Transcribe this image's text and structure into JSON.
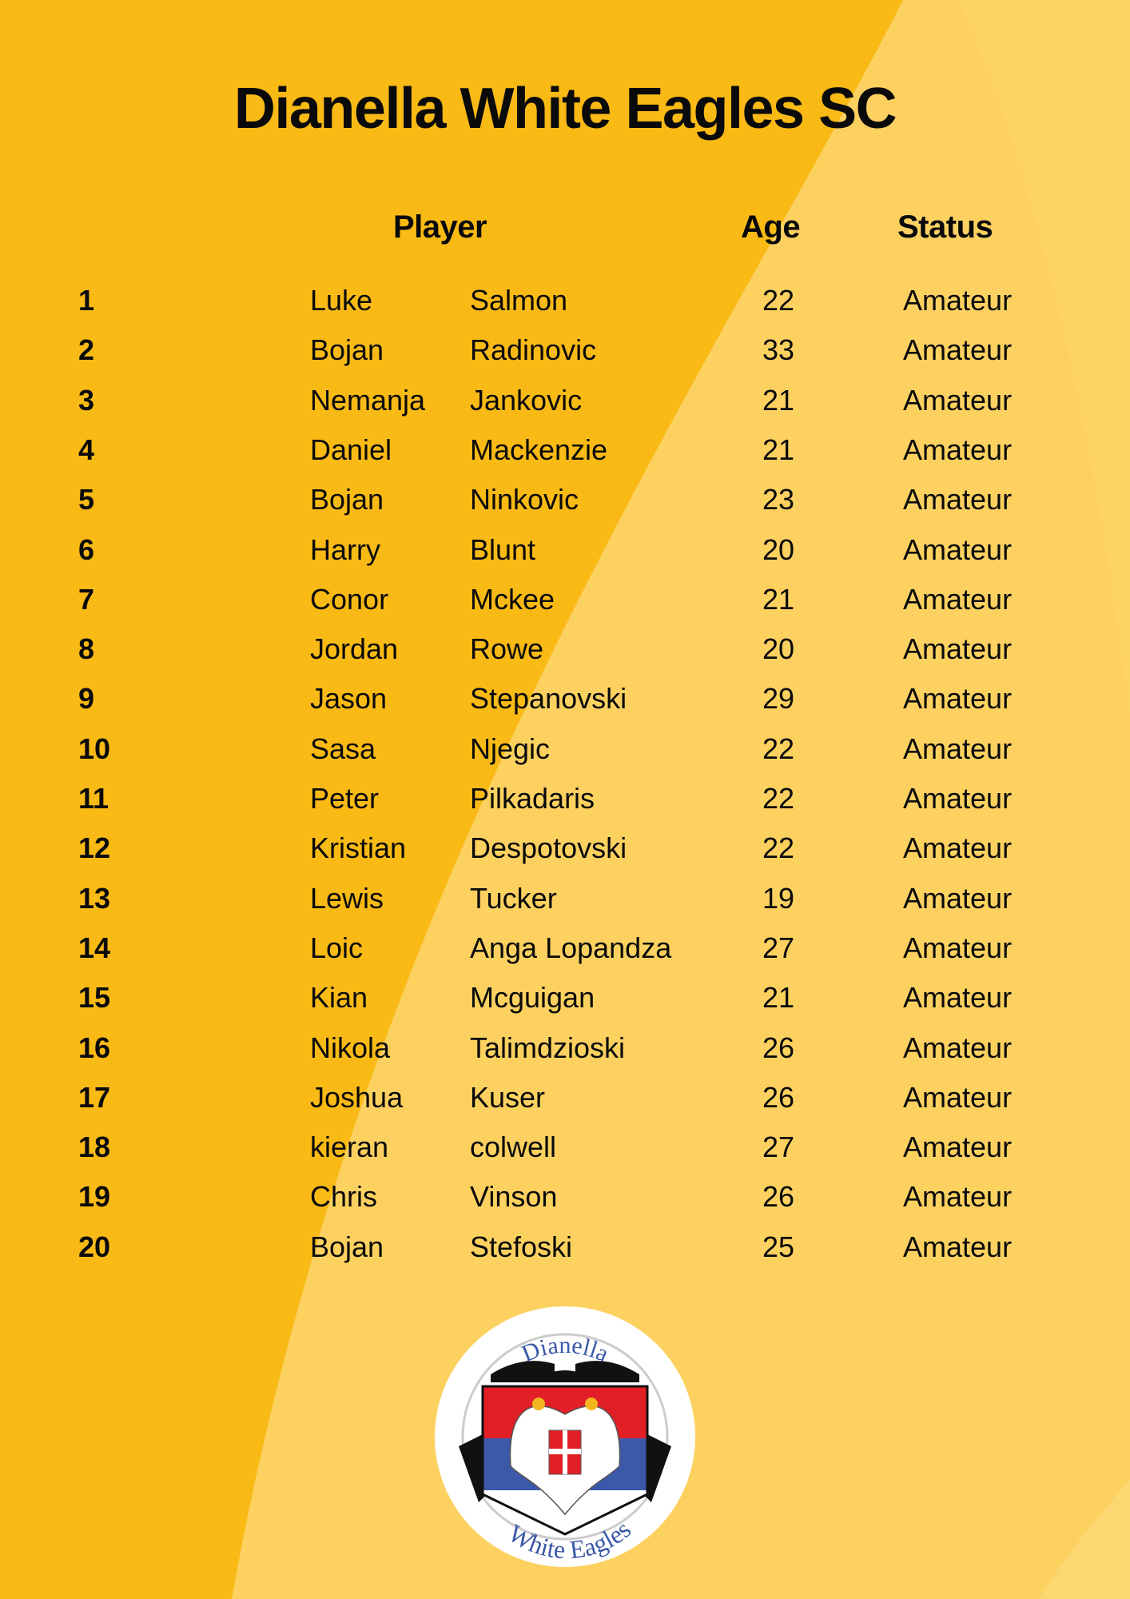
{
  "title": "Dianella White Eagles SC",
  "headers": {
    "player": "Player",
    "age": "Age",
    "status": "Status"
  },
  "colors": {
    "background": "#F9BA15",
    "background_light": "#FCD160",
    "text": "#0a0a0a"
  },
  "players": [
    {
      "number": "1",
      "first": "Luke",
      "last": "Salmon",
      "age": "22",
      "status": "Amateur"
    },
    {
      "number": "2",
      "first": "Bojan",
      "last": "Radinovic",
      "age": "33",
      "status": "Amateur"
    },
    {
      "number": "3",
      "first": "Nemanja",
      "last": "Jankovic",
      "age": "21",
      "status": "Amateur"
    },
    {
      "number": "4",
      "first": "Daniel",
      "last": "Mackenzie",
      "age": "21",
      "status": "Amateur"
    },
    {
      "number": "5",
      "first": "Bojan",
      "last": "Ninkovic",
      "age": "23",
      "status": "Amateur"
    },
    {
      "number": "6",
      "first": "Harry",
      "last": "Blunt",
      "age": "20",
      "status": "Amateur"
    },
    {
      "number": "7",
      "first": "Conor",
      "last": "Mckee",
      "age": "21",
      "status": "Amateur"
    },
    {
      "number": "8",
      "first": "Jordan",
      "last": "Rowe",
      "age": "20",
      "status": "Amateur"
    },
    {
      "number": "9",
      "first": "Jason",
      "last": "Stepanovski",
      "age": "29",
      "status": "Amateur"
    },
    {
      "number": "10",
      "first": "Sasa",
      "last": "Njegic",
      "age": "22",
      "status": "Amateur"
    },
    {
      "number": "11",
      "first": "Peter",
      "last": "Pilkadaris",
      "age": "22",
      "status": "Amateur"
    },
    {
      "number": "12",
      "first": "Kristian",
      "last": "Despotovski",
      "age": "22",
      "status": "Amateur"
    },
    {
      "number": "13",
      "first": "Lewis",
      "last": "Tucker",
      "age": "19",
      "status": "Amateur"
    },
    {
      "number": "14",
      "first": "Loic",
      "last": "Anga Lopandza",
      "age": "27",
      "status": "Amateur"
    },
    {
      "number": "15",
      "first": "Kian",
      "last": "Mcguigan",
      "age": "21",
      "status": "Amateur"
    },
    {
      "number": "16",
      "first": "Nikola",
      "last": "Talimdzioski",
      "age": "26",
      "status": "Amateur"
    },
    {
      "number": "17",
      "first": "Joshua",
      "last": "Kuser",
      "age": "26",
      "status": "Amateur"
    },
    {
      "number": "18",
      "first": "kieran",
      "last": "colwell",
      "age": "27",
      "status": "Amateur"
    },
    {
      "number": "19",
      "first": "Chris",
      "last": "Vinson",
      "age": "26",
      "status": "Amateur"
    },
    {
      "number": "20",
      "first": "Bojan",
      "last": "Stefoski",
      "age": "25",
      "status": "Amateur"
    }
  ],
  "logo": {
    "top_text": "Dianella",
    "bottom_text": "White Eagles"
  }
}
